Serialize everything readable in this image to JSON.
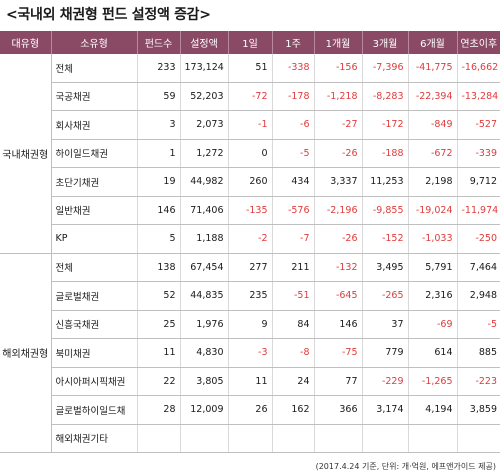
{
  "title": "<국내외 채권형 펀드 설정액 증감>",
  "header": [
    "대유형",
    "소유형",
    "펀드수",
    "설정액",
    "1일",
    "1주",
    "1개월",
    "3개월",
    "6개월",
    "연초이후"
  ],
  "groups": [
    {
      "name": "국내채권형",
      "rows": [
        {
          "type": "전체",
          "cells": [
            "233",
            "173,124",
            "51",
            "-338",
            "-156",
            "-7,396",
            "-41,775",
            "-16,662"
          ]
        },
        {
          "type": "국공채권",
          "cells": [
            "59",
            "52,203",
            "-72",
            "-178",
            "-1,218",
            "-8,283",
            "-22,394",
            "-13,284"
          ]
        },
        {
          "type": "회사채권",
          "cells": [
            "3",
            "2,073",
            "-1",
            "-6",
            "-27",
            "-172",
            "-849",
            "-527"
          ]
        },
        {
          "type": "하이일드채권",
          "cells": [
            "1",
            "1,272",
            "0",
            "-5",
            "-26",
            "-188",
            "-672",
            "-339"
          ]
        },
        {
          "type": "초단기채권",
          "cells": [
            "19",
            "44,982",
            "260",
            "434",
            "3,337",
            "11,253",
            "2,198",
            "9,712"
          ]
        },
        {
          "type": "일반채권",
          "cells": [
            "146",
            "71,406",
            "-135",
            "-576",
            "-2,196",
            "-9,855",
            "-19,024",
            "-11,974"
          ]
        },
        {
          "type": "KP",
          "cells": [
            "5",
            "1,188",
            "-2",
            "-7",
            "-26",
            "-152",
            "-1,033",
            "-250"
          ]
        }
      ]
    },
    {
      "name": "해외채권형",
      "rows": [
        {
          "type": "전체",
          "cells": [
            "138",
            "67,454",
            "277",
            "211",
            "-132",
            "3,495",
            "5,791",
            "7,464"
          ]
        },
        {
          "type": "글로벌채권",
          "cells": [
            "52",
            "44,835",
            "235",
            "-51",
            "-645",
            "-265",
            "2,316",
            "2,948"
          ]
        },
        {
          "type": "신흥국채권",
          "cells": [
            "25",
            "1,976",
            "9",
            "84",
            "146",
            "37",
            "-69",
            "-5"
          ]
        },
        {
          "type": "북미채권",
          "cells": [
            "11",
            "4,830",
            "-3",
            "-8",
            "-75",
            "779",
            "614",
            "885"
          ]
        },
        {
          "type": "아시아퍼시픽채권",
          "cells": [
            "22",
            "3,805",
            "11",
            "24",
            "77",
            "-229",
            "-1,265",
            "-223"
          ]
        },
        {
          "type": "글로벌하이일드채",
          "cells": [
            "28",
            "12,009",
            "26",
            "162",
            "366",
            "3,174",
            "4,194",
            "3,859"
          ]
        },
        {
          "type": "해외채권기타",
          "cells": [
            "",
            "",
            "",
            "",
            "",
            "",
            "",
            ""
          ]
        }
      ]
    }
  ],
  "footer": "(2017.4.24 기준, 단위: 개·억원, 에프앤가이드 제공)",
  "colors": {
    "header_bg": "#8a4a66",
    "header_text": "#ffffff",
    "negative": "#e03c3c"
  }
}
